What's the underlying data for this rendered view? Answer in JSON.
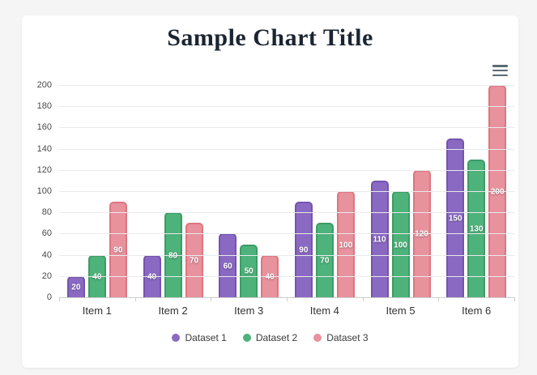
{
  "colors": {
    "page_background": "#f5f5f6",
    "card_background": "#ffffff",
    "title_text": "#1b2531",
    "gridline": "#e9eaec",
    "axis_line": "#cccccc",
    "y_label_text": "#4a4a4a",
    "x_label_text": "#333333",
    "legend_text": "#3a3a3a",
    "menu_icon": "#5c6a73",
    "bar_value_text": "#ffffff"
  },
  "header": {
    "menu_icon": "hamburger-icon"
  },
  "chart_data": {
    "type": "bar",
    "title": "Sample Chart Title",
    "xlabel": "",
    "ylabel": "",
    "categories": [
      "Item 1",
      "Item 2",
      "Item 3",
      "Item 4",
      "Item 5",
      "Item 6"
    ],
    "series": [
      {
        "name": "Dataset 1",
        "values": [
          20,
          40,
          60,
          90,
          110,
          150
        ],
        "fill": "#8a69c2",
        "border": "#7454ae"
      },
      {
        "name": "Dataset 2",
        "values": [
          40,
          80,
          50,
          70,
          100,
          130
        ],
        "fill": "#4eb27b",
        "border": "#3c9c67"
      },
      {
        "name": "Dataset 3",
        "values": [
          90,
          70,
          40,
          100,
          120,
          200
        ],
        "fill": "#e7929d",
        "border": "#de7582"
      }
    ],
    "ylim": [
      0,
      200
    ],
    "yticks": [
      0,
      20,
      40,
      60,
      80,
      100,
      120,
      140,
      160,
      180,
      200
    ],
    "grid": true,
    "legend_position": "bottom",
    "data_labels": true
  }
}
